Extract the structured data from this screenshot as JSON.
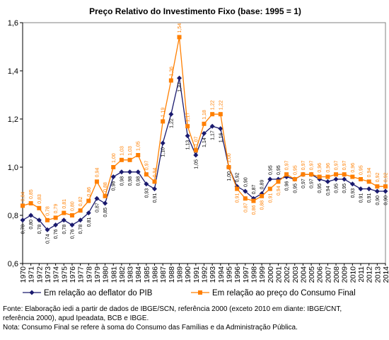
{
  "chart_data": {
    "type": "line",
    "title": "Preço Relativo do Investimento Fixo (base: 1995 = 1)",
    "xlabel": "",
    "ylabel": "",
    "ylim": [
      0.6,
      1.6
    ],
    "yticks": [
      "0,6",
      "0,8",
      "1,0",
      "1,2",
      "1,4",
      "1,6"
    ],
    "categories": [
      "1970",
      "1971",
      "1972",
      "1973",
      "1974",
      "1975",
      "1976",
      "1977",
      "1978",
      "1979",
      "1980",
      "1981",
      "1982",
      "1983",
      "1984",
      "1985",
      "1986",
      "1987",
      "1988",
      "1989",
      "1990",
      "1991",
      "1992",
      "1993",
      "1994",
      "1995",
      "1996",
      "1997",
      "1998",
      "1999",
      "2000",
      "2001",
      "2002",
      "2003",
      "2004",
      "2005",
      "2006",
      "2007",
      "2008",
      "2009",
      "2010",
      "2011",
      "2012",
      "2013",
      "2014"
    ],
    "legend_position": "bottom",
    "grid": false,
    "series": [
      {
        "name": "Em relação ao deflator do PIB",
        "color": "#1a1a6e",
        "marker": "diamond",
        "values": [
          0.78,
          0.8,
          0.78,
          0.74,
          0.76,
          0.78,
          0.76,
          0.78,
          0.81,
          0.87,
          0.85,
          0.96,
          0.98,
          0.98,
          0.98,
          0.93,
          0.91,
          1.1,
          1.22,
          1.37,
          1.13,
          1.05,
          1.14,
          1.17,
          1.16,
          1.0,
          0.92,
          0.9,
          0.87,
          0.89,
          0.95,
          0.95,
          0.96,
          0.95,
          0.97,
          0.97,
          0.95,
          0.94,
          0.95,
          0.95,
          0.93,
          0.91,
          0.91,
          0.9,
          0.9
        ],
        "labels": [
          "0,78",
          "0,80",
          "0,78",
          "0,74",
          "0,76",
          "0,78",
          "0,76",
          "0,78",
          "0,81",
          "0,87",
          "0,85",
          "0,96",
          "0,98",
          "0,98",
          "0,98",
          "0,93",
          "0,91",
          "1,10",
          "1,22",
          "1,37",
          "1,13",
          "1,05",
          "1,14",
          "1,17",
          "1,16",
          "1,00",
          "0,92",
          "0,90",
          "0,87",
          "0,89",
          "0,95",
          "0,95",
          "0,96",
          "0,95",
          "0,97",
          "0,97",
          "0,95",
          "0,94",
          "0,95",
          "0,95",
          "0,93",
          "0,91",
          "0,91",
          "0,90",
          "0,90"
        ]
      },
      {
        "name": "Em relação ao preço do Consumo Final",
        "color": "#ff7f00",
        "marker": "square",
        "values": [
          0.84,
          0.85,
          0.83,
          0.78,
          0.79,
          0.81,
          0.8,
          0.82,
          0.86,
          0.94,
          0.88,
          1.0,
          1.03,
          1.03,
          1.05,
          0.97,
          0.94,
          1.19,
          1.36,
          1.54,
          1.17,
          1.07,
          1.18,
          1.22,
          1.22,
          1.0,
          0.91,
          0.87,
          0.86,
          0.88,
          0.91,
          0.94,
          0.97,
          0.95,
          0.97,
          0.97,
          0.96,
          0.96,
          0.97,
          0.97,
          0.96,
          0.95,
          0.94,
          0.92,
          0.92
        ],
        "labels": [
          "0,84",
          "0,85",
          "0,83",
          "0,78",
          "0,79",
          "0,81",
          "0,80",
          "0,82",
          "0,86",
          "0,94",
          "0,88",
          "1,00",
          "1,03",
          "1,03",
          "1,05",
          "0,97",
          "0,94",
          "1,19",
          "1,36",
          "1,54",
          "1,17",
          "1,07",
          "1,18",
          "1,22",
          "1,22",
          "1,00",
          "0,91",
          "0,87",
          "0,86",
          "0,88",
          "0,91",
          "0,94",
          "0,97",
          "0,95",
          "0,97",
          "0,97",
          "0,96",
          "0,96",
          "0,97",
          "0,97",
          "0,96",
          "0,95",
          "0,94",
          "0,92",
          "0,92"
        ]
      }
    ]
  },
  "notes": {
    "source_line1": "Fonte: Elaboração iedi a partir de dados de IBGE/SCN, referência 2000 (exceto 2010 em diante: IBGE/CNT,",
    "source_line2": "referência 2000), apud Ipeadata, BCB e IBGE.",
    "note_line": "Nota: Consumo Final se refere à soma do Consumo das Famílias e da Administração Pública."
  }
}
